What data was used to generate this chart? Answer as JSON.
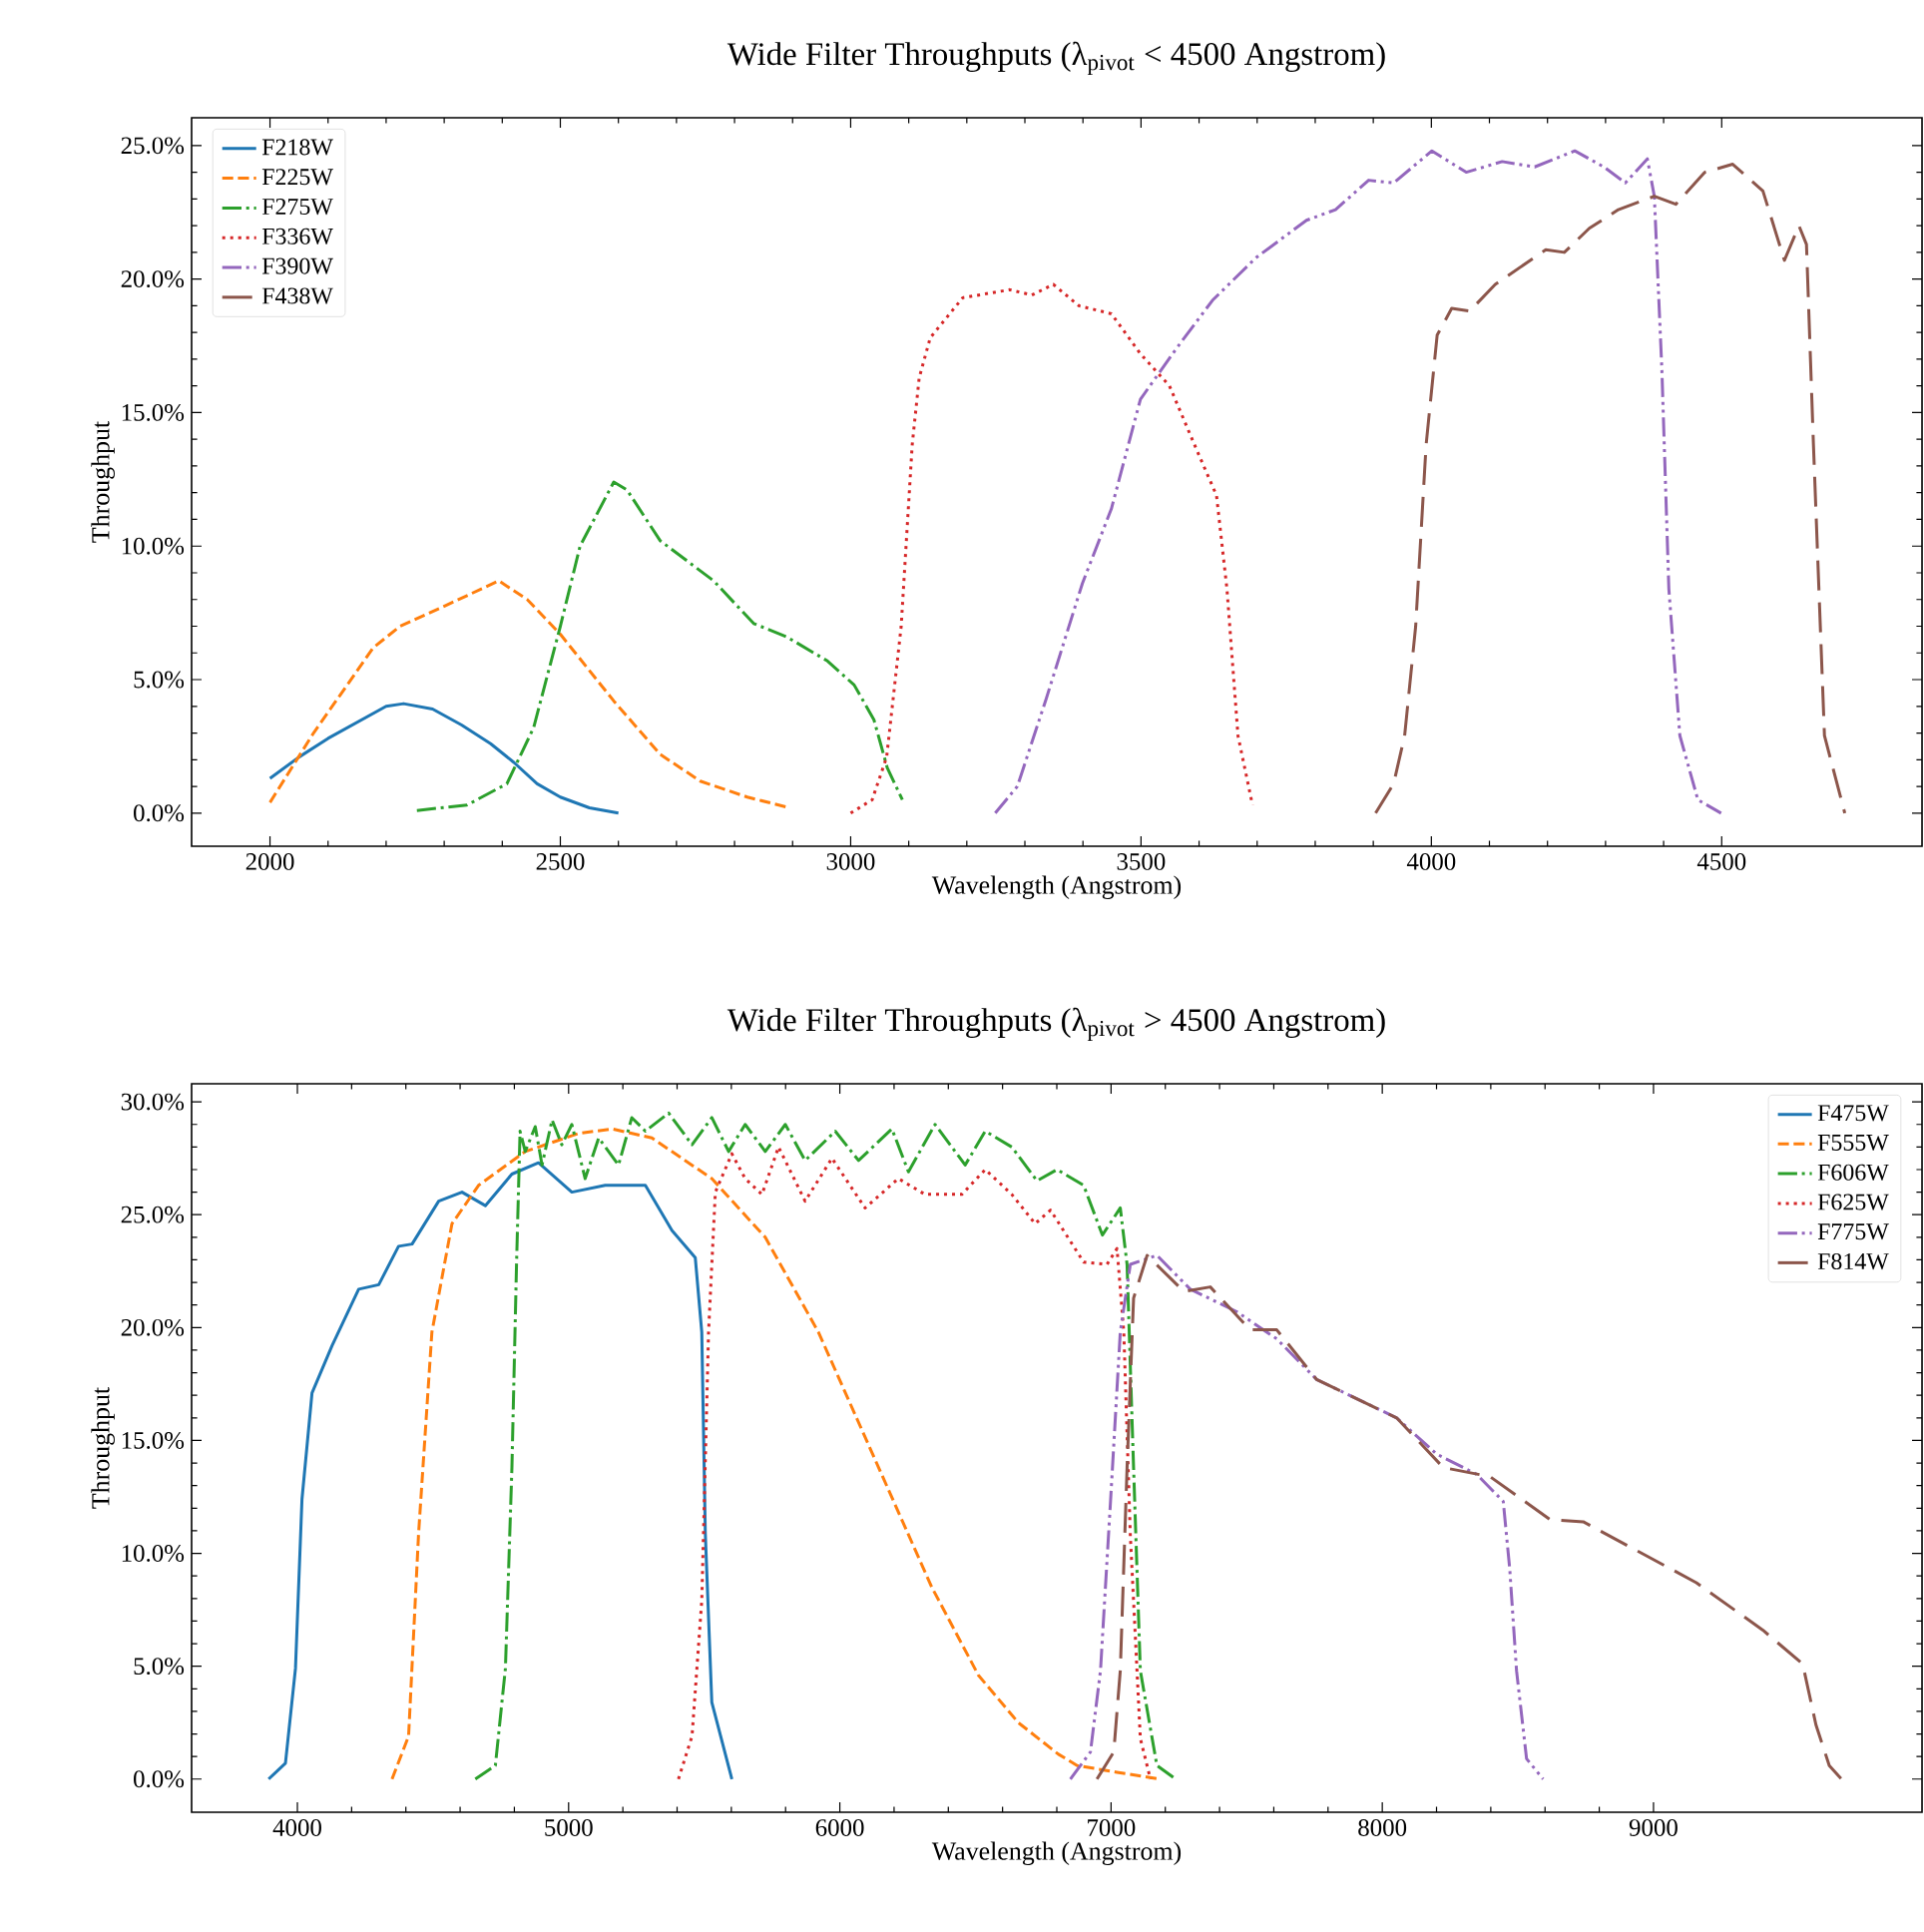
{
  "chart_data": [
    {
      "type": "line",
      "title": "Wide Filter Throughputs (λ$_{pivot}$ < 4500 Angstrom)",
      "xlabel": "Wavelength (Angstrom)",
      "ylabel": "Throughput",
      "legend": "top left",
      "xlim": [
        1865,
        4845
      ],
      "ylim": [
        -1.24,
        26.04
      ],
      "xticks": [
        2000,
        2500,
        3000,
        3500,
        4000,
        4500
      ],
      "yticks": [
        {
          "value": 0,
          "label": "0.0%"
        },
        {
          "value": 5,
          "label": "5.0%"
        },
        {
          "value": 10,
          "label": "10.0%"
        },
        {
          "value": 15,
          "label": "15.0%"
        },
        {
          "value": 20,
          "label": "20.0%"
        },
        {
          "value": 25,
          "label": "25.0%"
        }
      ],
      "series": [
        {
          "name": "F218W",
          "color": "#1f77b4",
          "line_style": "solid",
          "x": [
            2000,
            2050,
            2100,
            2150,
            2200,
            2230,
            2280,
            2330,
            2380,
            2420,
            2460,
            2500,
            2550,
            2600
          ],
          "values": [
            1.3,
            2.1,
            2.8,
            3.4,
            4.0,
            4.1,
            3.9,
            3.3,
            2.6,
            1.9,
            1.1,
            0.6,
            0.2,
            0
          ]
        },
        {
          "name": "F225W",
          "color": "#ff7f0e",
          "line_style": "dashed",
          "x": [
            2000,
            2075,
            2178,
            2224,
            2305,
            2394,
            2443,
            2500,
            2592,
            2672,
            2741,
            2822,
            2895
          ],
          "values": [
            0.4,
            3.0,
            6.2,
            7.0,
            7.8,
            8.7,
            8.0,
            6.7,
            4.2,
            2.2,
            1.2,
            0.6,
            0.2
          ]
        },
        {
          "name": "F275W",
          "color": "#2ca02c",
          "line_style": "dashdot",
          "x": [
            2253,
            2339,
            2408,
            2454,
            2500,
            2534,
            2592,
            2615,
            2672,
            2764,
            2833,
            2890,
            2960,
            3006,
            3040,
            3063,
            3089
          ],
          "values": [
            0.1,
            0.3,
            1.1,
            3.2,
            7.0,
            10.0,
            12.4,
            12.1,
            10.2,
            8.7,
            7.1,
            6.6,
            5.7,
            4.8,
            3.5,
            1.7,
            0.5
          ]
        },
        {
          "name": "F336W",
          "color": "#d62728",
          "line_style": "dotted",
          "x": [
            3000,
            3037,
            3062,
            3087,
            3106,
            3118,
            3137,
            3193,
            3274,
            3312,
            3349,
            3393,
            3449,
            3499,
            3549,
            3592,
            3630,
            3648,
            3667,
            3692
          ],
          "values": [
            0,
            0.5,
            2.1,
            7.0,
            13.8,
            16.3,
            17.8,
            19.3,
            19.6,
            19.4,
            19.8,
            19.0,
            18.7,
            17.2,
            16.0,
            13.8,
            11.9,
            8.4,
            2.9,
            0.3
          ]
        },
        {
          "name": "F390W",
          "color": "#9467bd",
          "line_style": "dashdotdot",
          "x": [
            3249,
            3287,
            3337,
            3399,
            3449,
            3499,
            3561,
            3623,
            3698,
            3785,
            3835,
            3892,
            3935,
            4001,
            4060,
            4122,
            4178,
            4247,
            4297,
            4334,
            4372,
            4384,
            4397,
            4409,
            4428,
            4459,
            4499
          ],
          "values": [
            0,
            1.0,
            4.3,
            8.6,
            11.4,
            15.5,
            17.4,
            19.2,
            20.8,
            22.2,
            22.6,
            23.7,
            23.6,
            24.8,
            24.0,
            24.4,
            24.2,
            24.8,
            24.2,
            23.6,
            24.5,
            23.1,
            16.6,
            8.4,
            2.9,
            0.5,
            0
          ]
        },
        {
          "name": "F438W",
          "color": "#8c564b",
          "line_style": "longdash",
          "x": [
            3904,
            3935,
            3954,
            3973,
            3991,
            4010,
            4035,
            4066,
            4110,
            4197,
            4229,
            4272,
            4322,
            4384,
            4421,
            4471,
            4519,
            4571,
            4608,
            4633,
            4646,
            4658,
            4677,
            4712
          ],
          "values": [
            0,
            1.1,
            2.9,
            7.0,
            13.8,
            17.9,
            18.9,
            18.8,
            19.8,
            21.1,
            21.0,
            21.9,
            22.6,
            23.1,
            22.8,
            24.0,
            24.3,
            23.3,
            20.7,
            22.0,
            21.3,
            13.8,
            2.9,
            0
          ]
        }
      ]
    },
    {
      "type": "line",
      "title": "Wide Filter Throughputs (λ$_{pivot}$ > 4500 Angstrom)",
      "xlabel": "Wavelength (Angstrom)",
      "ylabel": "Throughput",
      "legend": "top right",
      "xlim": [
        3610,
        9990
      ],
      "ylim": [
        -1.47,
        30.8
      ],
      "xticks": [
        4000,
        5000,
        6000,
        7000,
        8000,
        9000
      ],
      "yticks": [
        {
          "value": 0,
          "label": "0.0%"
        },
        {
          "value": 5,
          "label": "5.0%"
        },
        {
          "value": 10,
          "label": "10.0%"
        },
        {
          "value": 15,
          "label": "15.0%"
        },
        {
          "value": 20,
          "label": "20.0%"
        },
        {
          "value": 25,
          "label": "25.0%"
        },
        {
          "value": 30,
          "label": "30.0%"
        }
      ],
      "series": [
        {
          "name": "F475W",
          "color": "#1f77b4",
          "line_style": "solid",
          "x": [
            3894,
            3956,
            3993,
            4017,
            4054,
            4128,
            4226,
            4300,
            4373,
            4423,
            4521,
            4607,
            4693,
            4791,
            4889,
            5012,
            5135,
            5283,
            5381,
            5467,
            5491,
            5504,
            5528,
            5602
          ],
          "values": [
            0,
            0.7,
            4.9,
            12.4,
            17.1,
            19.2,
            21.7,
            21.9,
            23.6,
            23.7,
            25.6,
            26.0,
            25.4,
            26.8,
            27.3,
            26.0,
            26.3,
            26.3,
            24.3,
            23.1,
            19.8,
            10.9,
            3.4,
            0
          ]
        },
        {
          "name": "F555W",
          "color": "#ff7f0e",
          "line_style": "dashed",
          "x": [
            4349,
            4410,
            4447,
            4496,
            4570,
            4668,
            4840,
            5037,
            5160,
            5307,
            5528,
            5725,
            5921,
            6143,
            6339,
            6511,
            6658,
            6806,
            6875,
            7022,
            7182
          ],
          "values": [
            0,
            1.9,
            10.9,
            19.8,
            24.6,
            26.3,
            27.8,
            28.6,
            28.8,
            28.4,
            26.6,
            24.0,
            19.8,
            13.8,
            8.5,
            4.6,
            2.5,
            1.1,
            0.6,
            0.3,
            0
          ]
        },
        {
          "name": "F606W",
          "color": "#2ca02c",
          "line_style": "dashdot",
          "x": [
            4656,
            4730,
            4767,
            4791,
            4808,
            4821,
            4840,
            4877,
            4902,
            4939,
            4975,
            5012,
            5061,
            5111,
            5184,
            5233,
            5283,
            5369,
            5455,
            5528,
            5590,
            5651,
            5725,
            5799,
            5872,
            5983,
            6069,
            6192,
            6253,
            6351,
            6462,
            6536,
            6634,
            6727,
            6801,
            6899,
            6968,
            7034,
            7059,
            7083,
            7108,
            7169,
            7238
          ],
          "values": [
            0,
            0.6,
            4.9,
            13.8,
            22.8,
            28.7,
            27.8,
            28.9,
            27.2,
            29.2,
            28.1,
            29.0,
            26.6,
            28.4,
            27.2,
            29.3,
            28.7,
            29.5,
            28.1,
            29.3,
            27.8,
            29.0,
            27.8,
            29.0,
            27.4,
            28.7,
            27.4,
            28.8,
            26.9,
            29.0,
            27.2,
            28.7,
            28.0,
            26.5,
            27.0,
            26.3,
            24.1,
            25.3,
            22.8,
            13.8,
            4.8,
            0.6,
            0
          ]
        },
        {
          "name": "F625W",
          "color": "#d62728",
          "line_style": "dotted",
          "x": [
            5405,
            5455,
            5491,
            5516,
            5541,
            5602,
            5651,
            5713,
            5774,
            5872,
            5971,
            6093,
            6216,
            6314,
            6450,
            6536,
            6634,
            6720,
            6777,
            6899,
            6985,
            7022,
            7047,
            7071,
            7108,
            7145
          ],
          "values": [
            0,
            1.9,
            7.9,
            19.8,
            26.0,
            27.7,
            26.6,
            25.9,
            28.0,
            25.6,
            27.5,
            25.3,
            26.6,
            25.9,
            25.9,
            27.0,
            25.9,
            24.6,
            25.2,
            22.9,
            22.8,
            23.5,
            19.8,
            10.8,
            1.8,
            0
          ]
        },
        {
          "name": "F775W",
          "color": "#9467bd",
          "line_style": "dashdotdot",
          "x": [
            6850,
            6924,
            6961,
            6998,
            7034,
            7071,
            7169,
            7292,
            7464,
            7611,
            7758,
            8053,
            8200,
            8348,
            8446,
            8470,
            8495,
            8532,
            8593
          ],
          "values": [
            0,
            1.2,
            4.8,
            12.3,
            19.8,
            22.8,
            23.2,
            21.7,
            20.7,
            19.5,
            17.7,
            16.0,
            14.4,
            13.5,
            12.3,
            9.3,
            4.8,
            0.9,
            0
          ]
        },
        {
          "name": "F814W",
          "color": "#8c564b",
          "line_style": "longdash",
          "x": [
            6948,
            7010,
            7034,
            7059,
            7083,
            7133,
            7268,
            7366,
            7513,
            7611,
            7758,
            8053,
            8225,
            8397,
            8618,
            8741,
            9158,
            9403,
            9550,
            9599,
            9648,
            9693
          ],
          "values": [
            0,
            1.2,
            4.8,
            13.8,
            21.3,
            23.2,
            21.6,
            21.8,
            19.9,
            19.9,
            17.7,
            16.0,
            13.8,
            13.4,
            11.5,
            11.4,
            8.7,
            6.6,
            5.1,
            2.4,
            0.6,
            0
          ]
        }
      ]
    }
  ]
}
